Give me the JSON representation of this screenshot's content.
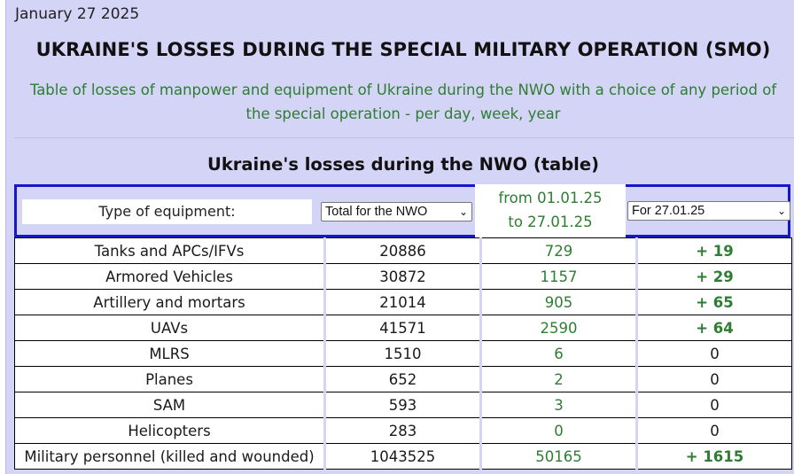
{
  "date": "January 27 2025",
  "title": "UKRAINE'S LOSSES DURING THE SPECIAL MILITARY OPERATION (SMO)",
  "subtitle_line1": "Table of losses of manpower and equipment of Ukraine during the NWO with a choice of any period of",
  "subtitle_line2": "the special operation - per day, week, year",
  "table_title": "Ukraine's losses during the NWO (table)",
  "controls": {
    "type_label": "Type of equipment:",
    "total_select": "Total for the NWO",
    "period_line1": "from 01.01.25",
    "period_line2": "to 27.01.25",
    "day_select": "For 27.01.25"
  },
  "rows": [
    {
      "type": "Tanks and APCs/IFVs",
      "total": "20886",
      "period": "729",
      "day": "+ 19"
    },
    {
      "type": "Armored Vehicles",
      "total": "30872",
      "period": "1157",
      "day": "+ 29"
    },
    {
      "type": "Artillery and mortars",
      "total": "21014",
      "period": "905",
      "day": "+ 65"
    },
    {
      "type": "UAVs",
      "total": "41571",
      "period": "2590",
      "day": "+ 64"
    },
    {
      "type": "MLRS",
      "total": "1510",
      "period": "6",
      "day": "0"
    },
    {
      "type": "Planes",
      "total": "652",
      "period": "2",
      "day": "0"
    },
    {
      "type": "SAM",
      "total": "593",
      "period": "3",
      "day": "0"
    },
    {
      "type": "Helicopters",
      "total": "283",
      "period": "0",
      "day": "0"
    },
    {
      "type": "Military personnel (killed and wounded)",
      "total": "1043525",
      "period": "50165",
      "day": "+ 1615"
    }
  ],
  "colors": {
    "background": "#d4d4f7",
    "green": "#2e7d32",
    "border_blue": "#1717c9"
  }
}
